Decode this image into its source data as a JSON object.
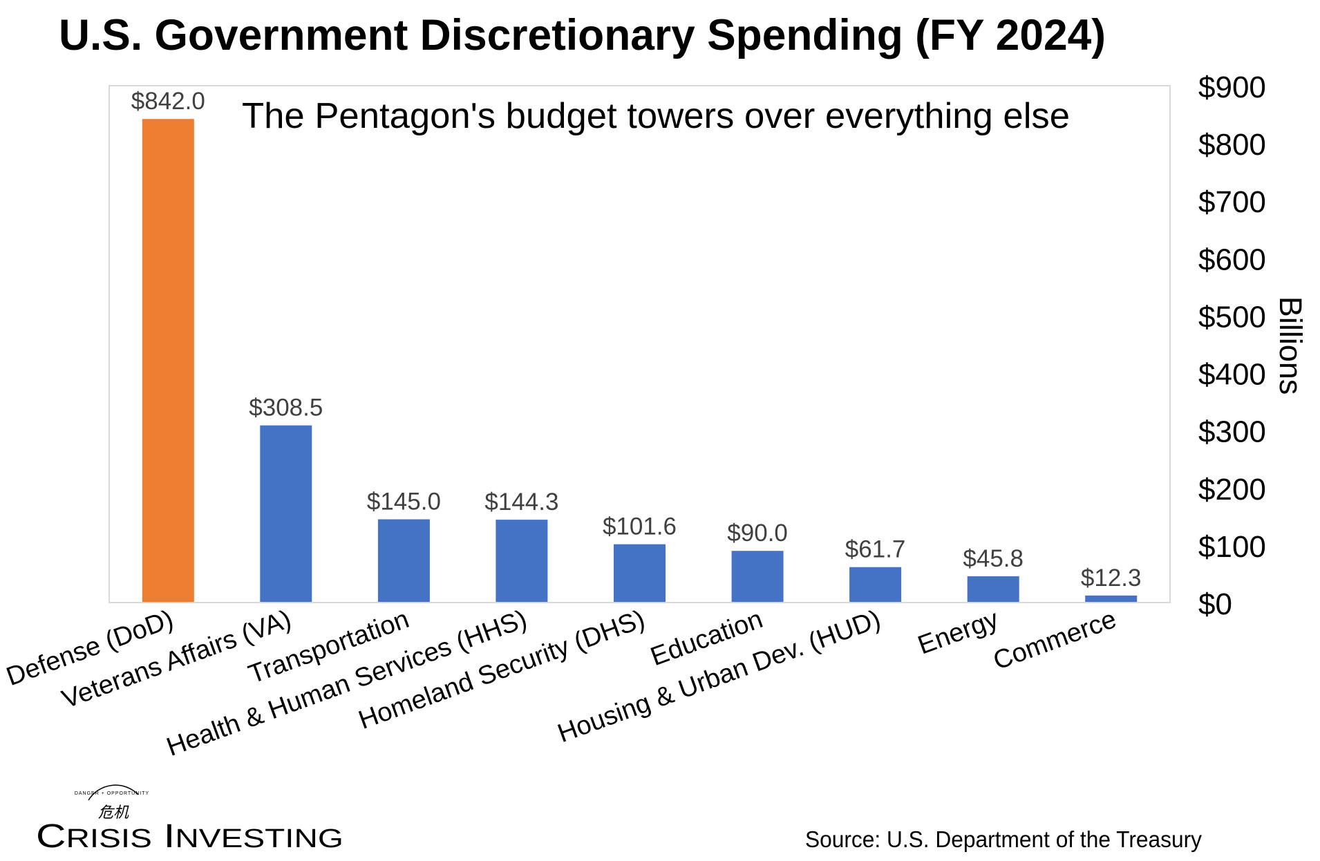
{
  "chart_data": {
    "type": "bar",
    "title": "U.S. Government Discretionary Spending (FY 2024)",
    "subtitle": "The Pentagon's budget towers over everything else",
    "ylabel": "Billions",
    "xlabel": "",
    "ylim": [
      0,
      900
    ],
    "yticks": [
      0,
      100,
      200,
      300,
      400,
      500,
      600,
      700,
      800,
      900
    ],
    "ytick_labels": [
      "$0",
      "$100",
      "$200",
      "$300",
      "$400",
      "$500",
      "$600",
      "$700",
      "$800",
      "$900"
    ],
    "y_axis_side": "right",
    "grid": false,
    "categories": [
      "Defense (DoD)",
      "Veterans Affairs (VA)",
      "Transportation",
      "Health & Human Services (HHS)",
      "Homeland Security (DHS)",
      "Education",
      "Housing & Urban Dev. (HUD)",
      "Energy",
      "Commerce"
    ],
    "values": [
      842.0,
      308.5,
      145.0,
      144.3,
      101.6,
      90.0,
      61.7,
      45.8,
      12.3
    ],
    "value_labels": [
      "$842.0",
      "$308.5",
      "$145.0",
      "$144.3",
      "$101.6",
      "$90.0",
      "$61.7",
      "$45.8",
      "$12.3"
    ],
    "bar_colors": [
      "#ED7D31",
      "#4472C4",
      "#4472C4",
      "#4472C4",
      "#4472C4",
      "#4472C4",
      "#4472C4",
      "#4472C4",
      "#4472C4"
    ],
    "source": "Source: U.S. Department of the Treasury"
  },
  "branding": {
    "logo_text": "Crisis Investing",
    "logo_tagline": "DANGER + OPPORTUNITY",
    "logo_glyph": "危机"
  }
}
